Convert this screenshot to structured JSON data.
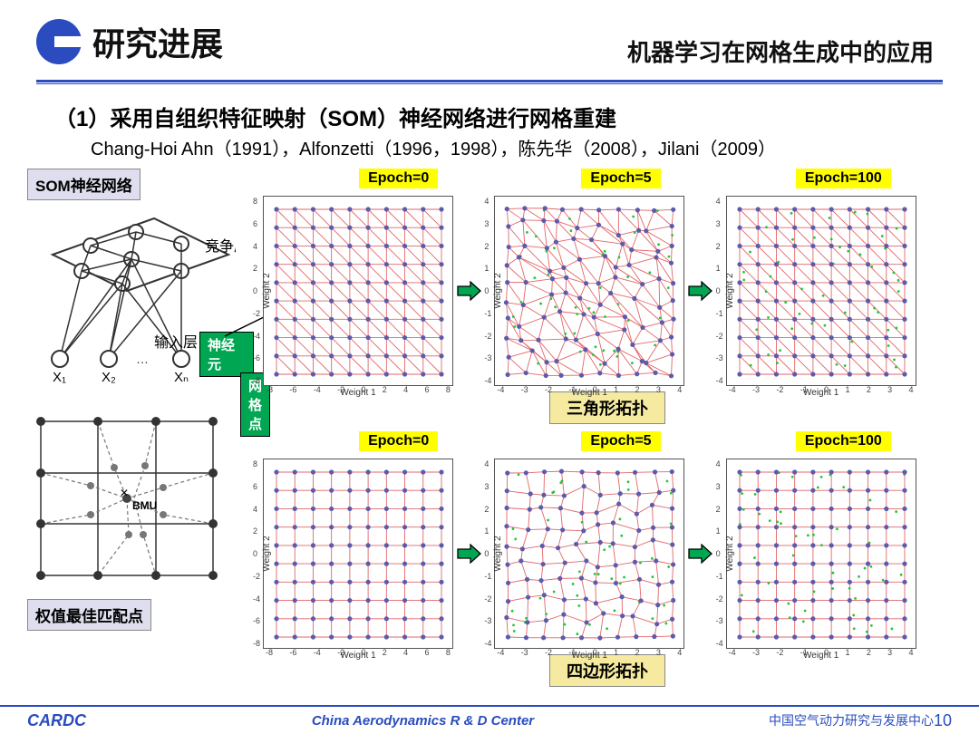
{
  "header": {
    "title_left": "研究进展",
    "title_right": "机器学习在网格生成中的应用"
  },
  "section": {
    "heading": "（1）采用自组织特征映射（SOM）神经网络进行网格重建",
    "references": "Chang-Hoi Ahn（1991），Alfonzetti（1996，1998），陈先华（2008），Jilani（2009）"
  },
  "left": {
    "som_label": "SOM神经网络",
    "compete_layer": "竞争层",
    "input_layer": "输入层",
    "inputs": [
      "X₁",
      "X₂",
      "Xₙ"
    ],
    "neuron_tag": "神经元",
    "gridpoint_tag": "网格点",
    "bmu_label": "权值最佳匹配点",
    "bmu_text": "BMU"
  },
  "epoch_labels": [
    "Epoch=0",
    "Epoch=5",
    "Epoch=100"
  ],
  "row1": {
    "caption": "三角形拓扑",
    "charts": [
      {
        "range": [
          -8,
          8
        ],
        "tick_step": 2,
        "grid_n": 10,
        "type": "triangular",
        "distortion": 0
      },
      {
        "range": [
          -4,
          4
        ],
        "tick_step": 1,
        "grid_n": 10,
        "type": "triangular",
        "distortion": 0.5
      },
      {
        "range": [
          -4,
          4
        ],
        "tick_step": 1,
        "grid_n": 10,
        "type": "triangular",
        "distortion": 0
      }
    ]
  },
  "row2": {
    "caption": "四边形拓扑",
    "charts": [
      {
        "range": [
          -8,
          8
        ],
        "tick_step": 2,
        "grid_n": 10,
        "type": "quad",
        "distortion": 0
      },
      {
        "range": [
          -4,
          4
        ],
        "tick_step": 1,
        "grid_n": 10,
        "type": "quad",
        "distortion": 0.35
      },
      {
        "range": [
          -4,
          4
        ],
        "tick_step": 1,
        "grid_n": 10,
        "type": "quad",
        "distortion": 0
      }
    ]
  },
  "style": {
    "node_color": "#5b5bac",
    "edge_color": "#e4666a",
    "green_dot_color": "#29c23a",
    "background_color": "#ffffff",
    "arrow_color": "#00a651",
    "arrow_border": "#000000",
    "axis_font_size": 10,
    "xlabel": "Weight 1",
    "ylabel": "Weight 2"
  },
  "footer": {
    "brand": "CARDC",
    "center_en": "China Aerodynamics R & D Center",
    "center_cn": "中国空气动力研究与发展中心",
    "page": "10"
  }
}
